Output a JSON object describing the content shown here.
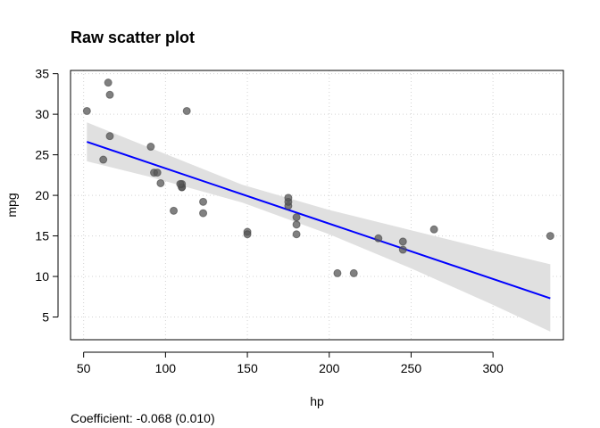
{
  "chart_data": {
    "type": "scatter",
    "title": "Raw scatter plot",
    "xlabel": "hp",
    "ylabel": "mpg",
    "caption": "Coefficient: -0.068 (0.010)",
    "xlim": [
      42,
      343
    ],
    "ylim": [
      2.2,
      35.4
    ],
    "x_ticks": [
      50,
      100,
      150,
      200,
      250,
      300
    ],
    "y_ticks": [
      5,
      10,
      15,
      20,
      25,
      30,
      35
    ],
    "grid": true,
    "points": [
      {
        "x": 110,
        "y": 21.0
      },
      {
        "x": 110,
        "y": 21.0
      },
      {
        "x": 93,
        "y": 22.8
      },
      {
        "x": 110,
        "y": 21.4
      },
      {
        "x": 175,
        "y": 18.7
      },
      {
        "x": 105,
        "y": 18.1
      },
      {
        "x": 245,
        "y": 14.3
      },
      {
        "x": 62,
        "y": 24.4
      },
      {
        "x": 95,
        "y": 22.8
      },
      {
        "x": 123,
        "y": 19.2
      },
      {
        "x": 123,
        "y": 17.8
      },
      {
        "x": 180,
        "y": 16.4
      },
      {
        "x": 180,
        "y": 17.3
      },
      {
        "x": 180,
        "y": 15.2
      },
      {
        "x": 205,
        "y": 10.4
      },
      {
        "x": 215,
        "y": 10.4
      },
      {
        "x": 230,
        "y": 14.7
      },
      {
        "x": 66,
        "y": 32.4
      },
      {
        "x": 52,
        "y": 30.4
      },
      {
        "x": 65,
        "y": 33.9
      },
      {
        "x": 97,
        "y": 21.5
      },
      {
        "x": 150,
        "y": 15.5
      },
      {
        "x": 150,
        "y": 15.2
      },
      {
        "x": 245,
        "y": 13.3
      },
      {
        "x": 175,
        "y": 19.2
      },
      {
        "x": 66,
        "y": 27.3
      },
      {
        "x": 91,
        "y": 26.0
      },
      {
        "x": 113,
        "y": 30.4
      },
      {
        "x": 264,
        "y": 15.8
      },
      {
        "x": 175,
        "y": 19.7
      },
      {
        "x": 335,
        "y": 15.0
      },
      {
        "x": 109,
        "y": 21.4
      }
    ],
    "fit_line": {
      "x": [
        52,
        335
      ],
      "y": [
        26.6,
        7.3
      ]
    },
    "confidence_band": [
      {
        "x": 52,
        "lower": 24.2,
        "upper": 29.0
      },
      {
        "x": 90,
        "lower": 22.3,
        "upper": 25.9
      },
      {
        "x": 147,
        "lower": 19.1,
        "upper": 21.3
      },
      {
        "x": 200,
        "lower": 15.2,
        "upper": 18.2
      },
      {
        "x": 250,
        "lower": 11.0,
        "upper": 15.7
      },
      {
        "x": 300,
        "lower": 6.5,
        "upper": 13.2
      },
      {
        "x": 335,
        "lower": 3.2,
        "upper": 11.5
      }
    ],
    "colors": {
      "points": "#555555",
      "line": "#0000ff",
      "band": "#e0e0e0",
      "grid": "#d3d3d3",
      "frame": "#000000"
    }
  }
}
